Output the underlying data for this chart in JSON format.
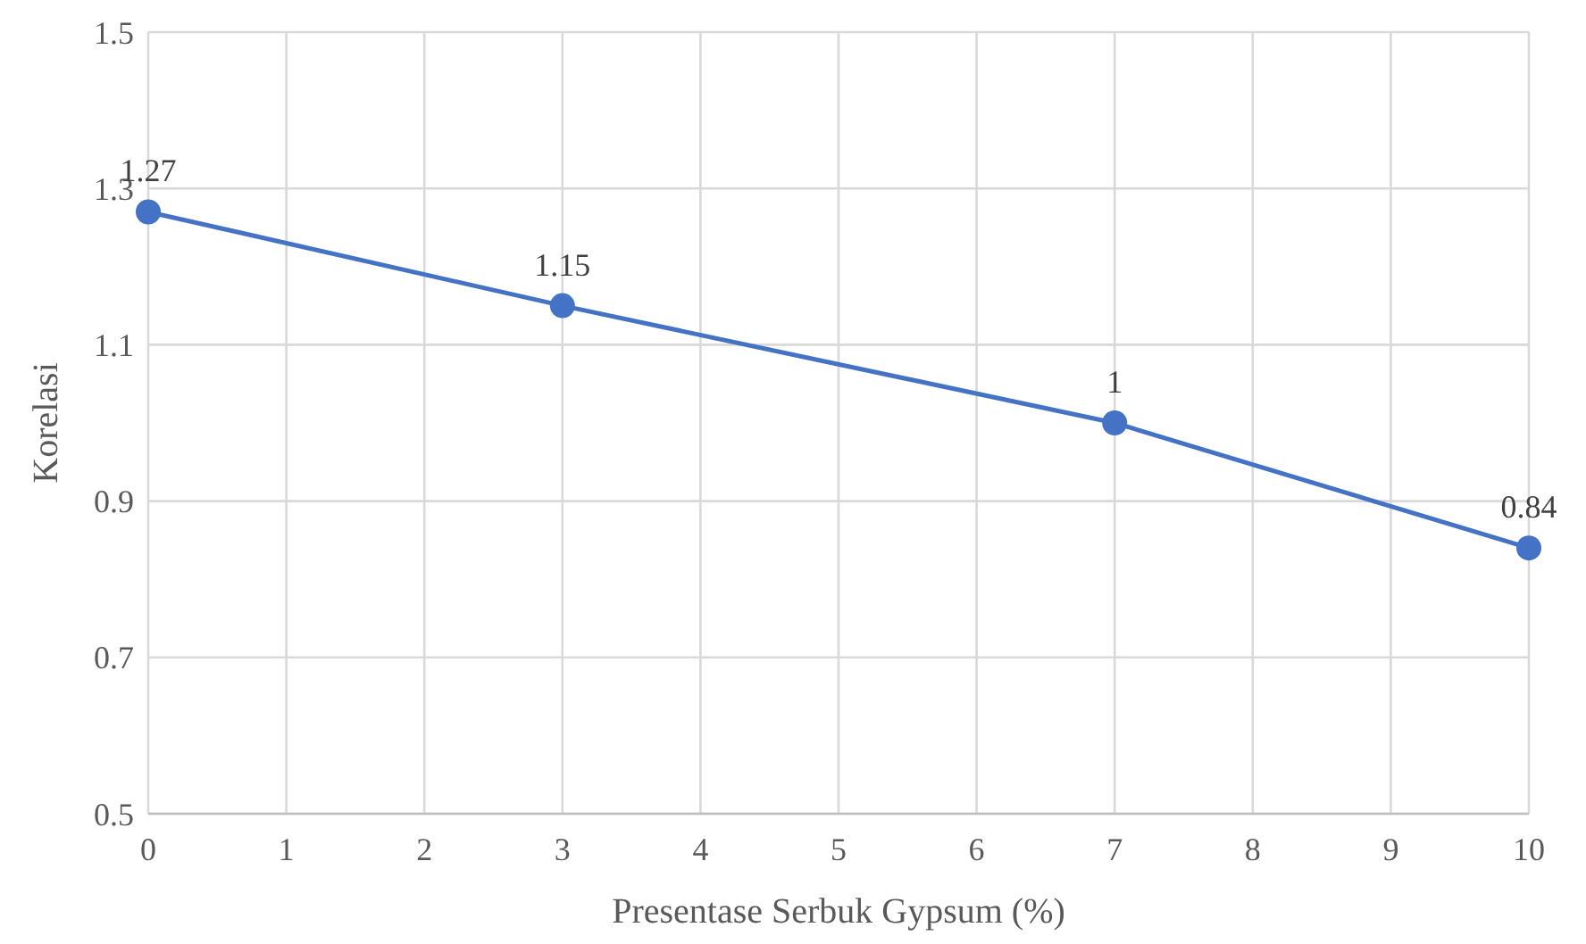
{
  "chart_data": {
    "type": "line",
    "xlabel": "Presentase Serbuk Gypsum (%)",
    "ylabel": "Korelasi",
    "x": [
      0,
      3,
      7,
      10
    ],
    "series": [
      {
        "color": "#4472c4",
        "values": [
          1.27,
          1.15,
          1,
          0.84
        ]
      }
    ],
    "xlim": [
      0,
      10
    ],
    "xticks": [
      0,
      1,
      2,
      3,
      4,
      5,
      6,
      7,
      8,
      9,
      10
    ],
    "ylim": [
      0.5,
      1.5
    ],
    "yticks": [
      0.5,
      0.7,
      0.9,
      1.1,
      1.3,
      1.5
    ],
    "grid": true,
    "marker": "circle",
    "data_labels": true
  }
}
